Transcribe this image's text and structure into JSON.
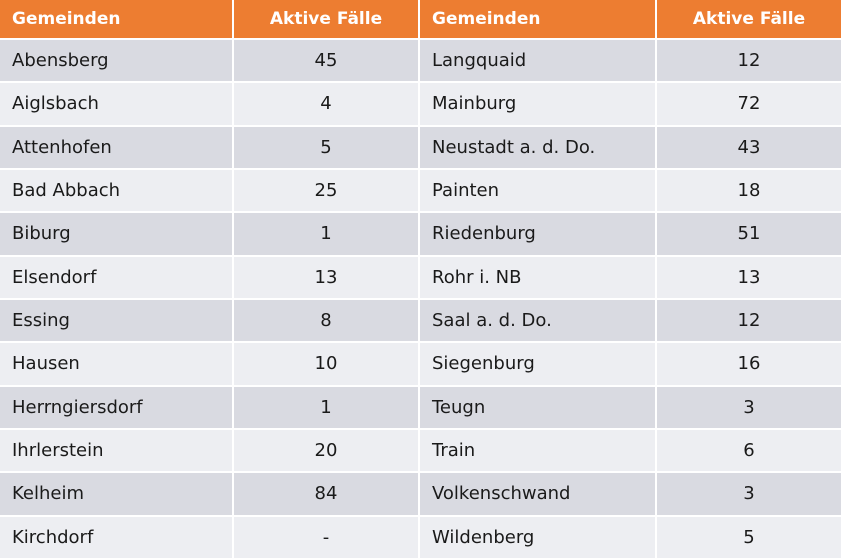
{
  "table": {
    "header": [
      "Gemeinden",
      "Aktive Fälle",
      "Gemeinden",
      "Aktive Fälle"
    ],
    "rows": [
      [
        "Abensberg",
        45,
        "Langquaid",
        12
      ],
      [
        "Aiglsbach",
        4,
        "Mainburg",
        72
      ],
      [
        "Attenhofen",
        5,
        "Neustadt a. d. Do.",
        43
      ],
      [
        "Bad Abbach",
        25,
        "Painten",
        18
      ],
      [
        "Biburg",
        1,
        "Riedenburg",
        51
      ],
      [
        "Elsendorf",
        13,
        "Rohr i. NB",
        13
      ],
      [
        "Essing",
        8,
        "Saal a. d. Do.",
        12
      ],
      [
        "Hausen",
        10,
        "Siegenburg",
        16
      ],
      [
        "Herrngiersdorf",
        1,
        "Teugn",
        3
      ],
      [
        "Ihrlerstein",
        20,
        "Train",
        6
      ],
      [
        "Kelheim",
        84,
        "Volkenschwand",
        3
      ],
      [
        "Kirchdorf",
        "-",
        "Wildenberg",
        5
      ]
    ]
  }
}
